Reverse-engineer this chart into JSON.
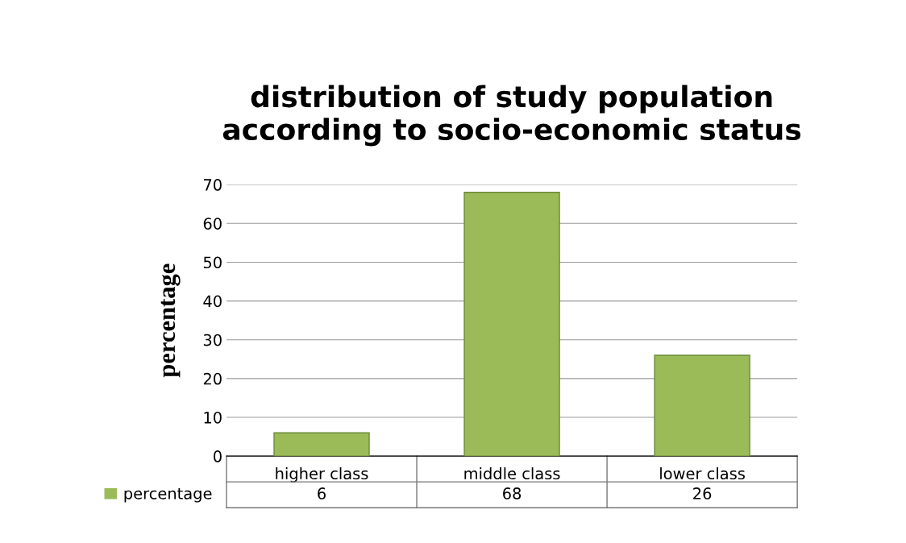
{
  "chart_data": {
    "type": "bar",
    "title": "distribution of study population\naccording to socio-economic status",
    "ylabel": "percentage",
    "categories": [
      "higher class",
      "middle class",
      "lower class"
    ],
    "series": [
      {
        "name": "percentage",
        "color": "#9bbb59",
        "values": [
          6,
          68,
          26
        ]
      }
    ],
    "ylim": [
      0,
      70
    ],
    "yticks": [
      0,
      10,
      20,
      30,
      40,
      50,
      60,
      70
    ],
    "grid": "y",
    "legend": "bottom",
    "data_labels": true
  }
}
